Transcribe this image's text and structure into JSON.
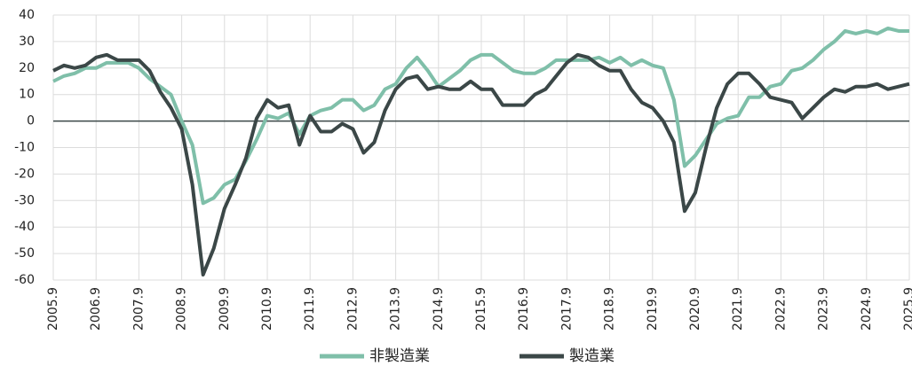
{
  "chart_data": {
    "type": "line",
    "categories": [
      "2005.9",
      null,
      null,
      null,
      "2006.9",
      null,
      null,
      null,
      "2007.9",
      null,
      null,
      null,
      "2008.9",
      null,
      null,
      null,
      "2009.9",
      null,
      null,
      null,
      "2010.9",
      null,
      null,
      null,
      "2011.9",
      null,
      null,
      null,
      "2012.9",
      null,
      null,
      null,
      "2013.9",
      null,
      null,
      null,
      "2014.9",
      null,
      null,
      null,
      "2015.9",
      null,
      null,
      null,
      "2016.9",
      null,
      null,
      null,
      "2017.9",
      null,
      null,
      null,
      "2018.9",
      null,
      null,
      null,
      "2019.9",
      null,
      null,
      null,
      "2020.9",
      null,
      null,
      null,
      "2021.9",
      null,
      null,
      null,
      "2022.9",
      null,
      null,
      null,
      "2023.9",
      null,
      null,
      null,
      "2024.9",
      null,
      null,
      null,
      "2025.9"
    ],
    "series": [
      {
        "name": "非製造業",
        "color": "#7fbfa9",
        "values": [
          15,
          17,
          18,
          20,
          20,
          22,
          22,
          22,
          20,
          16,
          13,
          10,
          0,
          -9,
          -31,
          -29,
          -24,
          -22,
          -15,
          -7,
          2,
          1,
          3,
          -5,
          2,
          4,
          5,
          8,
          8,
          4,
          6,
          12,
          14,
          20,
          24,
          19,
          13,
          16,
          19,
          23,
          25,
          25,
          22,
          19,
          18,
          18,
          20,
          23,
          23,
          23,
          23,
          24,
          22,
          24,
          21,
          23,
          21,
          20,
          8,
          -17,
          -13,
          -7,
          -1,
          1,
          2,
          9,
          9,
          13,
          14,
          19,
          20,
          23,
          27,
          30,
          34,
          33,
          34,
          33,
          35,
          34,
          34
        ]
      },
      {
        "name": "製造業",
        "color": "#3b4747",
        "values": [
          19,
          21,
          20,
          21,
          24,
          25,
          23,
          23,
          23,
          19,
          11,
          5,
          -3,
          -24,
          -58,
          -48,
          -33,
          -24,
          -14,
          1,
          8,
          5,
          6,
          -9,
          2,
          -4,
          -4,
          -1,
          -3,
          -12,
          -8,
          4,
          12,
          16,
          17,
          12,
          13,
          12,
          12,
          15,
          12,
          12,
          6,
          6,
          6,
          10,
          12,
          17,
          22,
          25,
          24,
          21,
          19,
          19,
          12,
          7,
          5,
          0,
          -8,
          -34,
          -27,
          -10,
          5,
          14,
          18,
          18,
          14,
          9,
          8,
          7,
          1,
          5,
          9,
          12,
          11,
          13,
          13,
          14,
          12,
          13,
          14
        ]
      }
    ],
    "ylim": [
      -60,
      40
    ],
    "yticks": [
      -60,
      -50,
      -40,
      -30,
      -20,
      -10,
      0,
      10,
      20,
      30,
      40
    ],
    "grid": true
  }
}
